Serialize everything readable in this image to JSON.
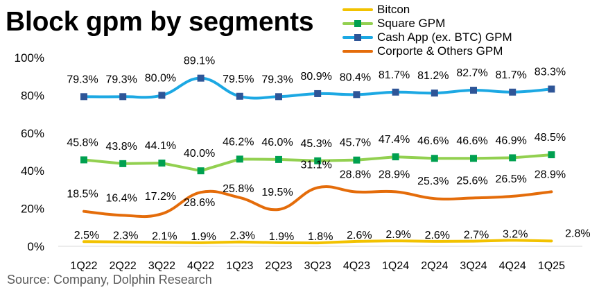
{
  "chart_data": {
    "type": "line",
    "title": "Block gpm by segments",
    "source": "Source: Company, Dolphin Research",
    "xlabel": "",
    "ylabel": "",
    "ylim": [
      0,
      100
    ],
    "yticks": [
      0,
      20,
      40,
      60,
      80,
      100
    ],
    "ytick_labels": [
      "0%",
      "20%",
      "40%",
      "60%",
      "80%",
      "100%"
    ],
    "categories": [
      "1Q22",
      "2Q22",
      "3Q22",
      "4Q22",
      "1Q23",
      "2Q23",
      "3Q23",
      "4Q23",
      "1Q24",
      "2Q24",
      "3Q24",
      "4Q24",
      "1Q25"
    ],
    "legend_position": "top-right",
    "series": [
      {
        "name": "Bitcon",
        "color": "#F2C200",
        "marker": "none",
        "smooth": false,
        "values": [
          2.5,
          2.3,
          2.1,
          1.9,
          2.3,
          1.9,
          1.8,
          2.6,
          2.9,
          2.6,
          2.7,
          3.2,
          2.8
        ],
        "labels": [
          "2.5%",
          "2.3%",
          "2.1%",
          "1.9%",
          "2.3%",
          "1.9%",
          "1.8%",
          "2.6%",
          "2.9%",
          "2.6%",
          "2.7%",
          "3.2%",
          "2.8%"
        ]
      },
      {
        "name": "Square GPM",
        "color": "#92D050",
        "marker": "square",
        "marker_color": "#00A050",
        "smooth": false,
        "values": [
          45.8,
          43.8,
          44.1,
          40.0,
          46.2,
          46.0,
          45.3,
          45.7,
          47.4,
          46.6,
          46.6,
          46.9,
          48.5
        ],
        "labels": [
          "45.8%",
          "43.8%",
          "44.1%",
          "40.0%",
          "46.2%",
          "46.0%",
          "45.3%",
          "45.7%",
          "47.4%",
          "46.6%",
          "46.6%",
          "46.9%",
          "48.5%"
        ]
      },
      {
        "name": "Cash App (ex. BTC) GPM",
        "color": "#1CA8E3",
        "marker": "square",
        "marker_color": "#2E5597",
        "smooth": true,
        "values": [
          79.3,
          79.3,
          80.0,
          89.1,
          79.5,
          79.3,
          80.9,
          80.4,
          81.7,
          81.2,
          82.7,
          81.7,
          83.3
        ],
        "labels": [
          "79.3%",
          "79.3%",
          "80.0%",
          "89.1%",
          "79.5%",
          "79.3%",
          "80.9%",
          "80.4%",
          "81.7%",
          "81.2%",
          "82.7%",
          "81.7%",
          "83.3%"
        ]
      },
      {
        "name": "Corporte & Others GPM",
        "color": "#E46C0A",
        "marker": "none",
        "smooth": true,
        "values": [
          18.5,
          16.4,
          17.2,
          28.6,
          25.8,
          19.5,
          31.1,
          28.8,
          28.9,
          25.3,
          25.6,
          26.5,
          28.9
        ],
        "labels": [
          "18.5%",
          "16.4%",
          "17.2%",
          "28.6%",
          "25.8%",
          "19.5%",
          "31.1%",
          "28.8%",
          "28.9%",
          "25.3%",
          "25.6%",
          "26.5%",
          "28.9%"
        ]
      }
    ]
  }
}
